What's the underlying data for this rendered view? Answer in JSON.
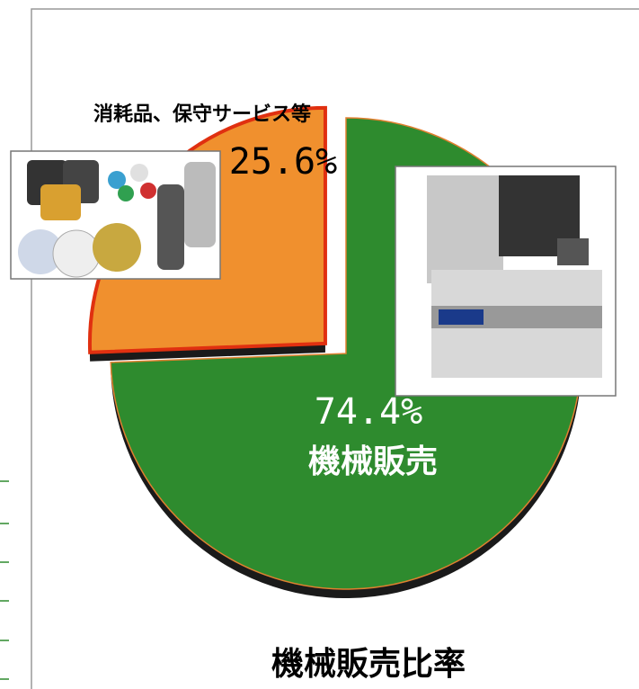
{
  "chart_data": {
    "type": "pie",
    "title": "機械販売比率",
    "categories": [
      "機械販売",
      "消耗品、保守サービス等"
    ],
    "values": [
      74.4,
      25.6
    ],
    "value_labels": [
      "74.4%",
      "25.6%"
    ],
    "colors": [
      "#2e8b2e",
      "#f0902e"
    ]
  }
}
